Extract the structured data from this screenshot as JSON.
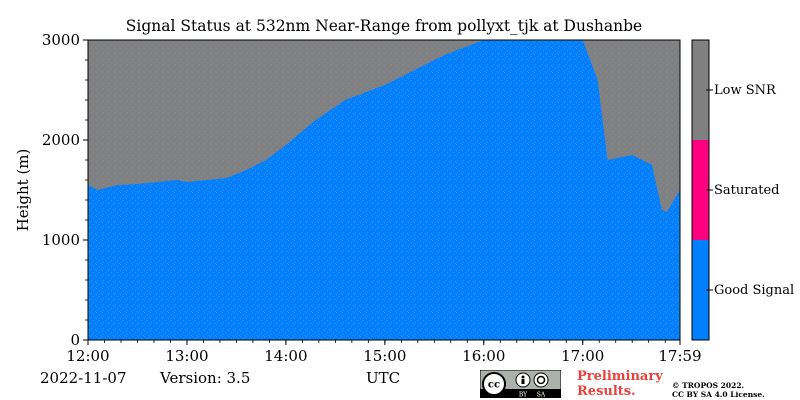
{
  "chart_data": {
    "type": "heatmap",
    "title": "Signal Status at 532nm Near-Range from pollyxt_tjk at Dushanbe",
    "ylabel": "Height (m)",
    "xlabel": "UTC",
    "x_ticks": [
      "12:00",
      "13:00",
      "14:00",
      "15:00",
      "16:00",
      "17:00",
      "17:59"
    ],
    "x_tick_hours": [
      12,
      13,
      14,
      15,
      16,
      17,
      17.983
    ],
    "xlim": [
      12,
      17.983
    ],
    "y_ticks": [
      0,
      1000,
      2000,
      3000
    ],
    "ylim": [
      0,
      3000
    ],
    "colorbar": {
      "categories": [
        {
          "label": "Good Signal",
          "color": "#0080ff"
        },
        {
          "label": "Saturated",
          "color": "#ff0080"
        },
        {
          "label": "Low SNR",
          "color": "#808080"
        }
      ]
    },
    "good_signal_top_m": {
      "hours": [
        12.0,
        12.1,
        12.3,
        12.5,
        12.7,
        12.9,
        13.0,
        13.2,
        13.4,
        13.6,
        13.8,
        14.0,
        14.3,
        14.6,
        15.0,
        15.3,
        15.6,
        16.0,
        16.2,
        16.3,
        16.4,
        16.5,
        16.6,
        16.8,
        17.0,
        17.15,
        17.25,
        17.5,
        17.7,
        17.8,
        17.85,
        17.983
      ],
      "heights": [
        1550,
        1500,
        1550,
        1560,
        1580,
        1600,
        1580,
        1600,
        1620,
        1700,
        1800,
        1950,
        2200,
        2400,
        2550,
        2700,
        2850,
        3000,
        3000,
        3000,
        3000,
        3000,
        3000,
        3000,
        3000,
        2600,
        1800,
        1850,
        1750,
        1300,
        1280,
        1500
      ]
    }
  },
  "footer": {
    "date": "2022-11-07",
    "version": "Version: 3.5",
    "unit": "UTC",
    "cc_text": "cc",
    "cc_by": "BY",
    "cc_sa": "SA",
    "preliminary_line1": "Preliminary",
    "preliminary_line2": "Results.",
    "copyright_line1": "© TROPOS 2022.",
    "copyright_line2": "CC BY SA 4.0 License."
  }
}
